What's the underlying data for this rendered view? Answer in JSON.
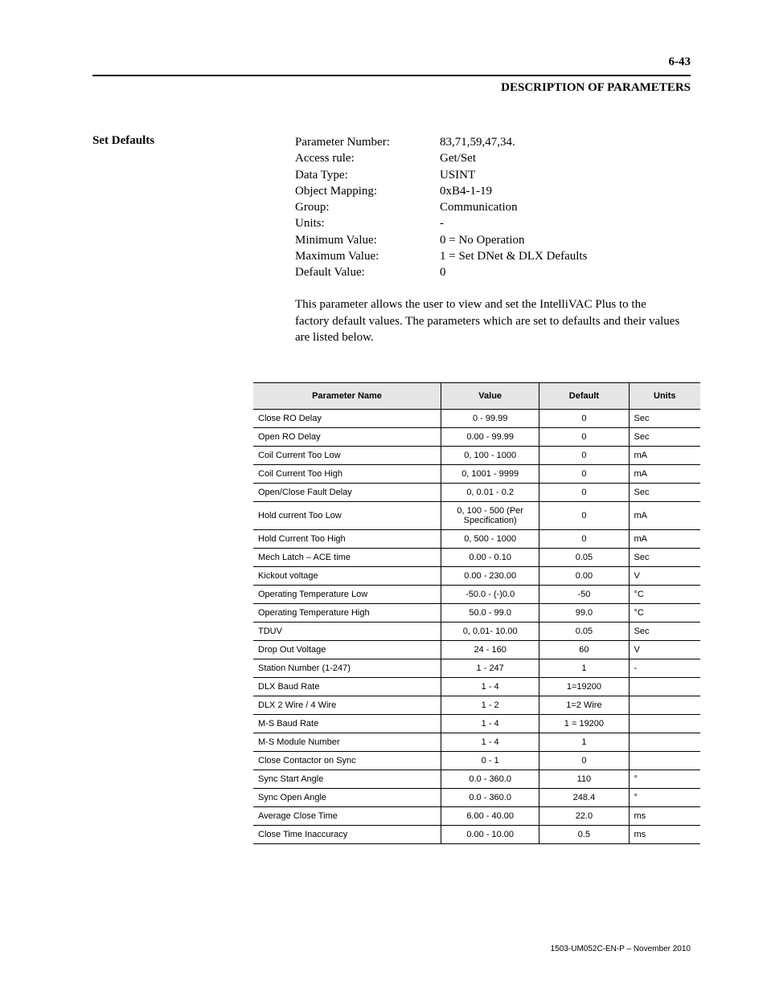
{
  "header": {
    "page_number": "6-43",
    "title": "DESCRIPTION OF PARAMETERS"
  },
  "section": {
    "label": "Set Defaults",
    "kv": [
      {
        "k": "Parameter Number:",
        "v": "83,71,59,47,34."
      },
      {
        "k": "Access rule:",
        "v": "Get/Set"
      },
      {
        "k": "Data Type:",
        "v": "USINT"
      },
      {
        "k": "Object Mapping:",
        "v": "0xB4-1-19"
      },
      {
        "k": "Group:",
        "v": "Communication"
      },
      {
        "k": "Units:",
        "v": "-"
      },
      {
        "k": "Minimum Value:",
        "v": "0 = No Operation"
      },
      {
        "k": "Maximum Value:",
        "v": "1 = Set DNet & DLX Defaults"
      },
      {
        "k": "Default Value:",
        "v": "0"
      }
    ],
    "paragraph": "This parameter allows the user to view and set the IntelliVAC Plus to the factory default values.  The parameters which are set to defaults and their values are listed below."
  },
  "table": {
    "columns": [
      "Parameter Name",
      "Value",
      "Default",
      "Units"
    ],
    "rows": [
      [
        "Close RO Delay",
        "0 - 99.99",
        "0",
        "Sec"
      ],
      [
        "Open RO Delay",
        "0.00 - 99.99",
        "0",
        "Sec"
      ],
      [
        "Coil Current Too Low",
        "0, 100 - 1000",
        "0",
        "mA"
      ],
      [
        "Coil Current Too High",
        "0, 1001 - 9999",
        "0",
        "mA"
      ],
      [
        "Open/Close Fault Delay",
        "0, 0.01 - 0.2",
        "0",
        "Sec"
      ],
      [
        "Hold current Too Low",
        "0, 100 - 500 (Per Specification)",
        "0",
        "mA"
      ],
      [
        "Hold Current Too High",
        "0, 500 - 1000",
        "0",
        "mA"
      ],
      [
        "Mech Latch – ACE time",
        "0.00 - 0.10",
        "0.05",
        "Sec"
      ],
      [
        "Kickout voltage",
        "0.00 - 230.00",
        "0.00",
        "V"
      ],
      [
        "Operating Temperature Low",
        "-50.0 - (-)0.0",
        "-50",
        "°C"
      ],
      [
        "Operating Temperature High",
        "50.0 - 99.0",
        "99.0",
        "°C"
      ],
      [
        "TDUV",
        "0, 0.01- 10.00",
        "0.05",
        "Sec"
      ],
      [
        "Drop Out Voltage",
        "24 - 160",
        "60",
        "V"
      ],
      [
        "Station Number (1-247)",
        "1 - 247",
        "1",
        "-"
      ],
      [
        "DLX Baud Rate",
        "1 - 4",
        "1=19200",
        ""
      ],
      [
        "DLX 2 Wire / 4 Wire",
        "1 - 2",
        "1=2 Wire",
        ""
      ],
      [
        "M-S Baud Rate",
        "1 - 4",
        "1 = 19200",
        ""
      ],
      [
        "M-S Module Number",
        "1 - 4",
        "1",
        ""
      ],
      [
        "Close Contactor on Sync",
        "0 - 1",
        "0",
        ""
      ],
      [
        "Sync Start Angle",
        "0.0 - 360.0",
        "110",
        "°"
      ],
      [
        "Sync Open Angle",
        "0.0 - 360.0",
        "248.4",
        "°"
      ],
      [
        "Average Close Time",
        "6.00 - 40.00",
        "22.0",
        "ms"
      ],
      [
        "Close Time Inaccuracy",
        "0.00 - 10.00",
        "0.5",
        "ms"
      ]
    ],
    "header_bg": "#e6e6e6",
    "border_color": "#000000"
  },
  "footer": "1503-UM052C-EN-P – November 2010"
}
